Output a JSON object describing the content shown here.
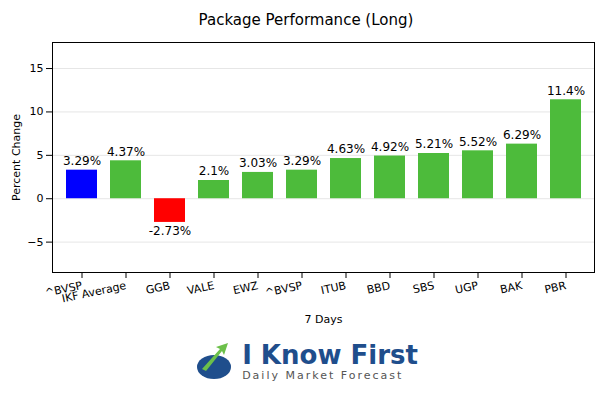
{
  "chart_data": {
    "type": "bar",
    "title": "Package Performance (Long)",
    "x_label": "7 Days",
    "y_label": "Percent Change",
    "categories": [
      "^BVSP",
      "IKF Average",
      "GGB",
      "VALE",
      "EWZ",
      "^BVSP",
      "ITUB",
      "BBD",
      "SBS",
      "UGP",
      "BAK",
      "PBR"
    ],
    "values": [
      3.29,
      4.37,
      -2.73,
      2.1,
      3.03,
      3.29,
      4.63,
      4.92,
      5.21,
      5.52,
      6.29,
      11.4
    ],
    "value_labels": [
      "3.29%",
      "4.37%",
      "-2.73%",
      "2.1%",
      "3.03%",
      "3.29%",
      "4.63%",
      "4.92%",
      "5.21%",
      "5.52%",
      "6.29%",
      "11.4%"
    ],
    "colors": [
      "#0000ff",
      "#4dbb3b",
      "#ff0000",
      "#4dbb3b",
      "#4dbb3b",
      "#4dbb3b",
      "#4dbb3b",
      "#4dbb3b",
      "#4dbb3b",
      "#4dbb3b",
      "#4dbb3b",
      "#4dbb3b"
    ],
    "ylim": [
      -8.5,
      18
    ],
    "yticks": [
      -5,
      0,
      5,
      10,
      15
    ],
    "grid": true,
    "data_labels": true,
    "annotations": [
      "I Know First",
      "Daily Market Forecast"
    ]
  }
}
